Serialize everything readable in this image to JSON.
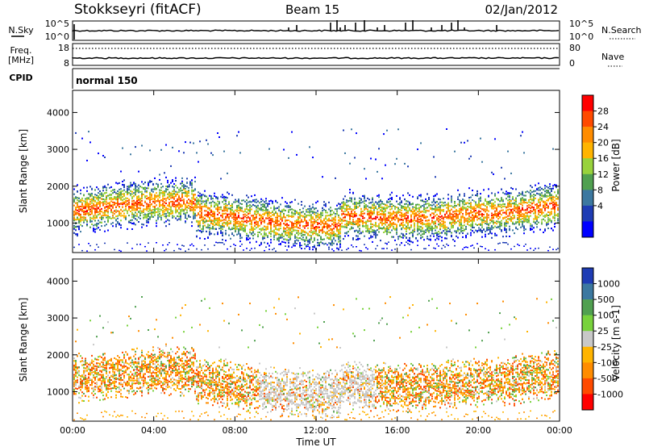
{
  "header": {
    "station": "Stokkseyri (fitACF)",
    "beam": "Beam 15",
    "date": "02/Jan/2012"
  },
  "top_panel": {
    "nsky_label": "N.Sky",
    "nsky_tick_top": "10^5",
    "nsky_tick_bottom": "10^0",
    "nsearch_label": "N.Search",
    "nsearch_tick_top": "10^5",
    "nsearch_tick_bottom": "10^0",
    "freq_label": "Freq.",
    "freq_unit": "[MHz]",
    "freq_tick_top": "18",
    "freq_tick_bottom": "8",
    "nave_label": "Nave",
    "nave_tick_top": "80",
    "nave_tick_bottom": "0",
    "cpid_label": "CPID",
    "cpid_value": "normal 150"
  },
  "chart_data": [
    {
      "type": "heatmap",
      "name": "Power",
      "ylabel": "Slant Range [km]",
      "ylim": [
        200,
        4600
      ],
      "yticks": [
        1000,
        2000,
        3000,
        4000
      ],
      "colorbar_label": "Power [dB]",
      "colorbar_ticks": [
        "28",
        "24",
        "20",
        "16",
        "12",
        "8",
        "4"
      ],
      "colors": [
        "#ff0000",
        "#ff4a00",
        "#ff8c00",
        "#ffb400",
        "#98d23c",
        "#50a050",
        "#3c78a0",
        "#1e3cb4",
        "#0000ff"
      ]
    },
    {
      "type": "heatmap",
      "name": "Velocity",
      "ylabel": "Slant Range [km]",
      "ylim": [
        200,
        4600
      ],
      "yticks": [
        1000,
        2000,
        3000,
        4000
      ],
      "colorbar_label": "Velocity [m s-1]",
      "colorbar_ticks": [
        "1000",
        "500",
        "100",
        "25",
        "-25",
        "-100",
        "-500",
        "-1000"
      ],
      "colors": [
        "#1e3cb4",
        "#3c78a0",
        "#50a050",
        "#78d23c",
        "#c8c8c8",
        "#ffb400",
        "#ff8c00",
        "#ff4a00",
        "#ff0000"
      ]
    }
  ],
  "xaxis": {
    "label": "Time UT",
    "ticks": [
      "00:00",
      "04:00",
      "08:00",
      "12:00",
      "16:00",
      "20:00",
      "00:00"
    ]
  }
}
